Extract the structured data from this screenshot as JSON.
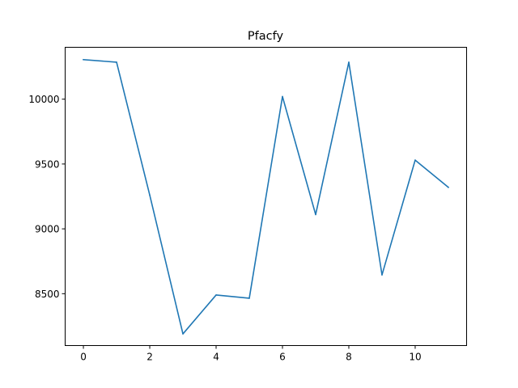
{
  "chart_data": {
    "type": "line",
    "title": "Pfacfy",
    "xlabel": "",
    "ylabel": "",
    "x": [
      0,
      1,
      2,
      3,
      4,
      5,
      6,
      7,
      8,
      9,
      10,
      11
    ],
    "series": [
      {
        "values": [
          10305,
          10285,
          9260,
          8190,
          8490,
          8465,
          10020,
          9110,
          10285,
          8645,
          9530,
          9320
        ],
        "color": "#1f77b4"
      }
    ],
    "xlim": [
      -0.55,
      11.55
    ],
    "ylim": [
      8100,
      10400
    ],
    "xticks": [
      0,
      2,
      4,
      6,
      8,
      10
    ],
    "xtick_labels": [
      "0",
      "2",
      "4",
      "6",
      "8",
      "10"
    ],
    "yticks": [
      8500,
      9000,
      9500,
      10000
    ],
    "ytick_labels": [
      "8500",
      "9000",
      "9500",
      "10000"
    ],
    "grid": false,
    "legend": "none"
  }
}
